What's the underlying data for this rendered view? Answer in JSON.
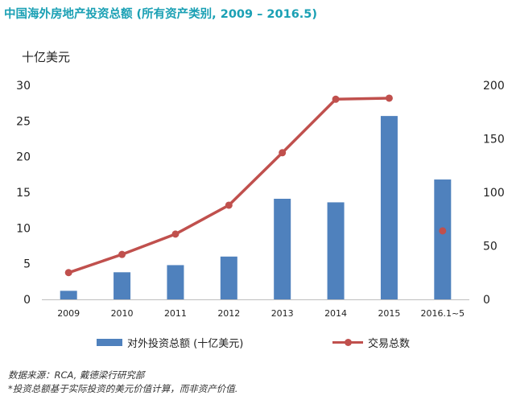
{
  "title": "中国海外房地产投资总额 (所有资产类别, 2009 – 2016.5)",
  "chart_data": {
    "type": "bar",
    "title": "中国海外房地产投资总额 (所有资产类别, 2009 – 2016.5)",
    "ylabel": "十亿美元",
    "categories": [
      "2009",
      "2010",
      "2011",
      "2012",
      "2013",
      "2014",
      "2015",
      "2016.1~5"
    ],
    "y_left_ticks": [
      "0",
      "5",
      "10",
      "15",
      "20",
      "25",
      "30"
    ],
    "y_right_ticks": [
      "0",
      "50",
      "100",
      "150",
      "200"
    ],
    "ylim_left": [
      0,
      30
    ],
    "ylim_right": [
      0,
      200
    ],
    "grid": false,
    "legend_position": "bottom",
    "series": [
      {
        "name": "对外投资总额 (十亿美元)",
        "type": "bar",
        "axis": "left",
        "color": "#4f81bd",
        "values": [
          1.2,
          3.8,
          4.8,
          6.0,
          14.1,
          13.6,
          25.7,
          16.8
        ]
      },
      {
        "name": "交易总数",
        "type": "line",
        "axis": "right",
        "color": "#c0504d",
        "values": [
          25,
          42,
          61,
          88,
          137,
          187,
          188,
          64
        ],
        "connected": [
          true,
          true,
          true,
          true,
          true,
          true,
          true,
          false
        ]
      }
    ]
  },
  "notes": {
    "source": "数据来源：RCA, 戴德梁行研究部",
    "footnote": "*投资总额基于实际投资的美元价值计算，而非资产价值."
  }
}
